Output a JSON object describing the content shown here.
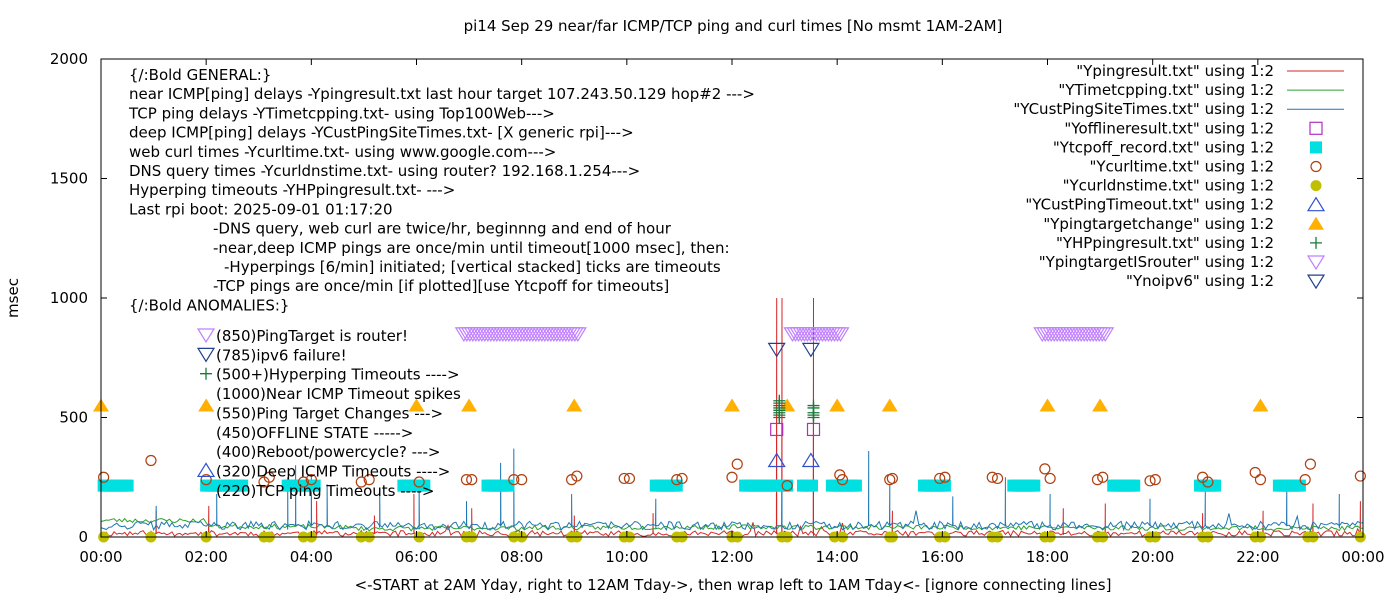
{
  "chart_data": {
    "type": "line",
    "title": "pi14 Sep 29  near/far ICMP/TCP ping and curl times [No msmt 1AM-2AM]",
    "xlabel": "<-START at 2AM Yday, right to 12AM Tday->, then wrap left to 1AM Tday<- [ignore connecting lines]",
    "ylabel": "msec",
    "xlim": [
      0,
      24
    ],
    "ylim": [
      0,
      2000
    ],
    "x_ticks": [
      {
        "value": 0,
        "label": "00:00"
      },
      {
        "value": 2,
        "label": "02:00"
      },
      {
        "value": 4,
        "label": "04:00"
      },
      {
        "value": 6,
        "label": "06:00"
      },
      {
        "value": 8,
        "label": "08:00"
      },
      {
        "value": 10,
        "label": "10:00"
      },
      {
        "value": 12,
        "label": "12:00"
      },
      {
        "value": 14,
        "label": "14:00"
      },
      {
        "value": 16,
        "label": "16:00"
      },
      {
        "value": 18,
        "label": "18:00"
      },
      {
        "value": 20,
        "label": "20:00"
      },
      {
        "value": 22,
        "label": "22:00"
      },
      {
        "value": 24,
        "label": "00:00"
      }
    ],
    "y_ticks": [
      {
        "value": 0,
        "label": "0"
      },
      {
        "value": 500,
        "label": "500"
      },
      {
        "value": 1000,
        "label": "1000"
      },
      {
        "value": 1500,
        "label": "1500"
      },
      {
        "value": 2000,
        "label": "2000"
      }
    ],
    "notes": [
      "{/:Bold GENERAL:}",
      "near ICMP[ping] delays -Ypingresult.txt last hour target 107.243.50.129 hop#2 --->",
      "TCP ping delays -YTimetcpping.txt- using Top100Web--->",
      "deep ICMP[ping] delays -YCustPingSiteTimes.txt- [X generic rpi]--->",
      "web curl times -Ycurltime.txt- using www.google.com--->",
      "DNS query times -Ycurldnstime.txt- using router? 192.168.1.254--->",
      "Hyperping timeouts -YHPpingresult.txt- --->",
      "Last rpi boot: 2025-09-01 01:17:20",
      "-DNS query, web curl are twice/hr, beginnng and end of hour",
      "-near,deep ICMP pings are once/min until timeout[1000 msec], then:",
      "-Hyperpings [6/min] initiated; [vertical stacked] ticks are timeouts",
      "-TCP pings are once/min [if plotted][use Ytcpoff for timeouts]",
      "{/:Bold ANOMALIES:}"
    ],
    "anomalies": [
      {
        "text": "(850)PingTarget is router!",
        "symbol": "tri-down-open",
        "color": "#c080ff"
      },
      {
        "text": "(785)ipv6 failure!",
        "symbol": "tri-down-open",
        "color": "#1f3f8f"
      },
      {
        "text": "(500+)Hyperping Timeouts ---->",
        "symbol": "plus",
        "color": "#1a7a3a"
      },
      {
        "text": "(1000)Near ICMP Timeout spikes",
        "symbol": "",
        "color": ""
      },
      {
        "text": "(550)Ping Target Changes --->",
        "symbol": "",
        "color": ""
      },
      {
        "text": "(450)OFFLINE STATE ----->",
        "symbol": "",
        "color": ""
      },
      {
        "text": "(400)Reboot/powercycle? --->",
        "symbol": "",
        "color": ""
      },
      {
        "text": "(320)Deep ICMP Timeouts ---->",
        "symbol": "tri-up-open",
        "color": "#3050d0"
      },
      {
        "text": "(220)TCP ping Timeouts ---->",
        "symbol": "",
        "color": ""
      }
    ],
    "legend": [
      {
        "name": "\"Ypingresult.txt\" using 1:2",
        "symbol": "line",
        "color": "#d62728"
      },
      {
        "name": "\"YTimetcpping.txt\" using 1:2",
        "symbol": "line",
        "color": "#2ca02c"
      },
      {
        "name": "\"YCustPingSiteTimes.txt\" using 1:2",
        "symbol": "line",
        "color": "#1f77b4"
      },
      {
        "name": "\"Yofflineresult.txt\" using 1:2",
        "symbol": "square-open",
        "color": "#b030c0"
      },
      {
        "name": "\"Ytcpoff_record.txt\" using 1:2",
        "symbol": "square",
        "color": "#00e0e0"
      },
      {
        "name": "\"Ycurltime.txt\" using 1:2",
        "symbol": "circle-open",
        "color": "#b04010"
      },
      {
        "name": "\"Ycurldnstime.txt\" using 1:2",
        "symbol": "circle",
        "color": "#c0c000"
      },
      {
        "name": "\"YCustPingTimeout.txt\" using 1:2",
        "symbol": "tri-up-open",
        "color": "#3050d0"
      },
      {
        "name": "\"Ypingtargetchange\" using 1:2",
        "symbol": "tri-up",
        "color": "#ffb000"
      },
      {
        "name": "\"YHPpingresult.txt\" using 1:2",
        "symbol": "plus",
        "color": "#1a7a3a"
      },
      {
        "name": "\"YpingtargetISrouter\" using 1:2",
        "symbol": "tri-down-open",
        "color": "#c080ff"
      },
      {
        "name": "\"Ynoipv6\" using 1:2",
        "symbol": "tri-down-open",
        "color": "#1f3f8f"
      }
    ],
    "legend_position": "top-right",
    "grid": false,
    "series": [
      {
        "name": "\"Ypingresult.txt\" using 1:2",
        "style": "line",
        "color": "#d62728",
        "baseline": 15,
        "jitter": 12,
        "seed": 11,
        "spikes": [
          [
            1.05,
            110
          ],
          [
            2.05,
            130
          ],
          [
            4.1,
            150
          ],
          [
            5.2,
            90
          ],
          [
            5.95,
            180
          ],
          [
            7.05,
            120
          ],
          [
            9.0,
            90
          ],
          [
            10.5,
            100
          ],
          [
            12.85,
            1000
          ],
          [
            12.95,
            1000
          ],
          [
            13.55,
            1000
          ],
          [
            15.05,
            110
          ],
          [
            18.3,
            120
          ],
          [
            19.1,
            140
          ],
          [
            20.95,
            100
          ],
          [
            22.1,
            110
          ],
          [
            23.05,
            140
          ],
          [
            23.95,
            150
          ]
        ]
      },
      {
        "name": "\"YTimetcpping.txt\" using 1:2",
        "style": "line",
        "color": "#2ca02c",
        "points": [
          [
            0.0,
            70
          ],
          [
            2.0,
            68
          ],
          [
            2.05,
            45
          ],
          [
            4.5,
            42
          ],
          [
            5.0,
            35
          ],
          [
            8.0,
            38
          ],
          [
            12.0,
            42
          ],
          [
            16.0,
            40
          ],
          [
            20.0,
            38
          ],
          [
            24.0,
            36
          ]
        ],
        "jitter": 10,
        "seed": 23
      },
      {
        "name": "\"YCustPingSiteTimes.txt\" using 1:2",
        "style": "line",
        "color": "#1f77b4",
        "baseline": 48,
        "jitter": 18,
        "seed": 37,
        "spikes": [
          [
            1.05,
            130
          ],
          [
            2.2,
            180
          ],
          [
            3.55,
            250
          ],
          [
            3.7,
            300
          ],
          [
            4.0,
            260
          ],
          [
            4.3,
            220
          ],
          [
            5.3,
            200
          ],
          [
            6.05,
            230
          ],
          [
            6.95,
            150
          ],
          [
            7.6,
            310
          ],
          [
            7.85,
            370
          ],
          [
            8.95,
            180
          ],
          [
            10.55,
            160
          ],
          [
            12.95,
            190
          ],
          [
            14.6,
            360
          ],
          [
            15.0,
            220
          ],
          [
            16.2,
            170
          ],
          [
            17.2,
            250
          ],
          [
            18.05,
            180
          ],
          [
            19.95,
            160
          ],
          [
            21.0,
            190
          ],
          [
            22.55,
            230
          ],
          [
            23.55,
            180
          ]
        ]
      },
      {
        "name": "\"Yofflineresult.txt\" using 1:2",
        "style": "square-open",
        "color": "#b030c0",
        "points": [
          [
            12.85,
            450
          ],
          [
            13.55,
            450
          ]
        ]
      },
      {
        "name": "\"Ytcpoff_record.txt\" using 1:2",
        "style": "square",
        "color": "#00e0e0",
        "segments": [
          [
            0.05,
            0.55,
            215
          ],
          [
            2.0,
            2.7,
            215
          ],
          [
            3.55,
            4.1,
            215
          ],
          [
            5.75,
            6.2,
            215
          ],
          [
            7.35,
            7.8,
            215
          ],
          [
            10.55,
            10.95,
            215
          ],
          [
            12.25,
            13.05,
            215
          ],
          [
            13.35,
            13.55,
            215
          ],
          [
            13.9,
            14.4,
            215
          ],
          [
            15.65,
            16.05,
            215
          ],
          [
            17.35,
            17.75,
            215
          ],
          [
            19.25,
            19.7,
            215
          ],
          [
            20.9,
            21.2,
            215
          ],
          [
            22.4,
            22.8,
            215
          ]
        ]
      },
      {
        "name": "\"Ycurltime.txt\" using 1:2",
        "style": "circle-open",
        "color": "#b04010",
        "points": [
          [
            0.05,
            250
          ],
          [
            0.95,
            320
          ],
          [
            2.0,
            240
          ],
          [
            3.1,
            230
          ],
          [
            3.2,
            250
          ],
          [
            3.85,
            230
          ],
          [
            4.0,
            240
          ],
          [
            4.95,
            230
          ],
          [
            5.1,
            240
          ],
          [
            6.05,
            230
          ],
          [
            6.95,
            240
          ],
          [
            7.05,
            240
          ],
          [
            7.85,
            240
          ],
          [
            8.0,
            240
          ],
          [
            8.95,
            240
          ],
          [
            9.05,
            255
          ],
          [
            9.95,
            245
          ],
          [
            10.05,
            245
          ],
          [
            10.95,
            240
          ],
          [
            11.05,
            245
          ],
          [
            12.0,
            250
          ],
          [
            12.1,
            305
          ],
          [
            13.05,
            215
          ],
          [
            14.05,
            260
          ],
          [
            14.1,
            240
          ],
          [
            15.0,
            240
          ],
          [
            15.05,
            245
          ],
          [
            15.95,
            245
          ],
          [
            16.05,
            250
          ],
          [
            16.95,
            250
          ],
          [
            17.05,
            245
          ],
          [
            17.95,
            285
          ],
          [
            18.05,
            245
          ],
          [
            18.95,
            240
          ],
          [
            19.05,
            250
          ],
          [
            19.95,
            235
          ],
          [
            20.05,
            240
          ],
          [
            20.95,
            250
          ],
          [
            21.05,
            230
          ],
          [
            21.95,
            270
          ],
          [
            22.05,
            240
          ],
          [
            22.9,
            240
          ],
          [
            23.0,
            305
          ],
          [
            23.95,
            255
          ]
        ]
      },
      {
        "name": "\"Ycurldnstime.txt\" using 1:2",
        "style": "circle",
        "color": "#c0c000",
        "points": [
          [
            0.05,
            0
          ],
          [
            0.95,
            0
          ],
          [
            2.0,
            0
          ],
          [
            3.1,
            0
          ],
          [
            3.2,
            0
          ],
          [
            3.85,
            0
          ],
          [
            4.0,
            0
          ],
          [
            4.95,
            0
          ],
          [
            5.1,
            0
          ],
          [
            6.05,
            0
          ],
          [
            6.95,
            0
          ],
          [
            7.05,
            0
          ],
          [
            7.85,
            0
          ],
          [
            8.0,
            0
          ],
          [
            8.95,
            0
          ],
          [
            9.05,
            0
          ],
          [
            9.95,
            0
          ],
          [
            10.05,
            0
          ],
          [
            10.95,
            0
          ],
          [
            11.05,
            0
          ],
          [
            12.0,
            0
          ],
          [
            12.1,
            0
          ],
          [
            12.95,
            0
          ],
          [
            13.05,
            0
          ],
          [
            13.95,
            0
          ],
          [
            14.1,
            0
          ],
          [
            15.0,
            0
          ],
          [
            15.05,
            0
          ],
          [
            15.95,
            0
          ],
          [
            16.05,
            0
          ],
          [
            16.95,
            0
          ],
          [
            17.05,
            0
          ],
          [
            17.95,
            0
          ],
          [
            18.05,
            0
          ],
          [
            18.95,
            0
          ],
          [
            19.05,
            0
          ],
          [
            19.95,
            0
          ],
          [
            20.05,
            0
          ],
          [
            20.95,
            0
          ],
          [
            21.05,
            0
          ],
          [
            21.95,
            0
          ],
          [
            22.05,
            0
          ],
          [
            22.95,
            0
          ],
          [
            23.05,
            0
          ],
          [
            23.95,
            0
          ]
        ]
      },
      {
        "name": "\"YCustPingTimeout.txt\" using 1:2",
        "style": "tri-up-open",
        "color": "#3050d0",
        "points": [
          [
            12.85,
            320
          ],
          [
            13.5,
            320
          ]
        ]
      },
      {
        "name": "\"Ypingtargetchange\" using 1:2",
        "style": "tri-up",
        "color": "#ffb000",
        "points": [
          [
            0.0,
            550
          ],
          [
            2.0,
            550
          ],
          [
            6.0,
            550
          ],
          [
            7.0,
            550
          ],
          [
            9.0,
            550
          ],
          [
            12.0,
            550
          ],
          [
            13.05,
            550
          ],
          [
            14.0,
            550
          ],
          [
            15.0,
            550
          ],
          [
            18.0,
            550
          ],
          [
            19.0,
            550
          ],
          [
            22.05,
            550
          ]
        ]
      },
      {
        "name": "\"YHPpingresult.txt\" using 1:2",
        "style": "plus",
        "color": "#1a7a3a",
        "points": [
          [
            12.9,
            500
          ],
          [
            12.9,
            510
          ],
          [
            12.9,
            520
          ],
          [
            12.9,
            530
          ],
          [
            12.9,
            540
          ],
          [
            12.9,
            550
          ],
          [
            12.9,
            560
          ],
          [
            12.9,
            570
          ],
          [
            13.55,
            500
          ],
          [
            13.55,
            510
          ],
          [
            13.55,
            520
          ],
          [
            13.55,
            540
          ],
          [
            13.55,
            550
          ]
        ]
      },
      {
        "name": "\"YpingtargetISrouter\" using 1:2",
        "style": "tri-down-open",
        "color": "#c080ff",
        "segments": [
          [
            6.9,
            9.1,
            850
          ],
          [
            13.15,
            14.1,
            850
          ],
          [
            17.9,
            19.1,
            850
          ]
        ]
      },
      {
        "name": "\"Ynoipv6\" using 1:2",
        "style": "tri-down-open",
        "color": "#1f3f8f",
        "points": [
          [
            12.85,
            785
          ],
          [
            13.5,
            785
          ]
        ]
      }
    ]
  }
}
